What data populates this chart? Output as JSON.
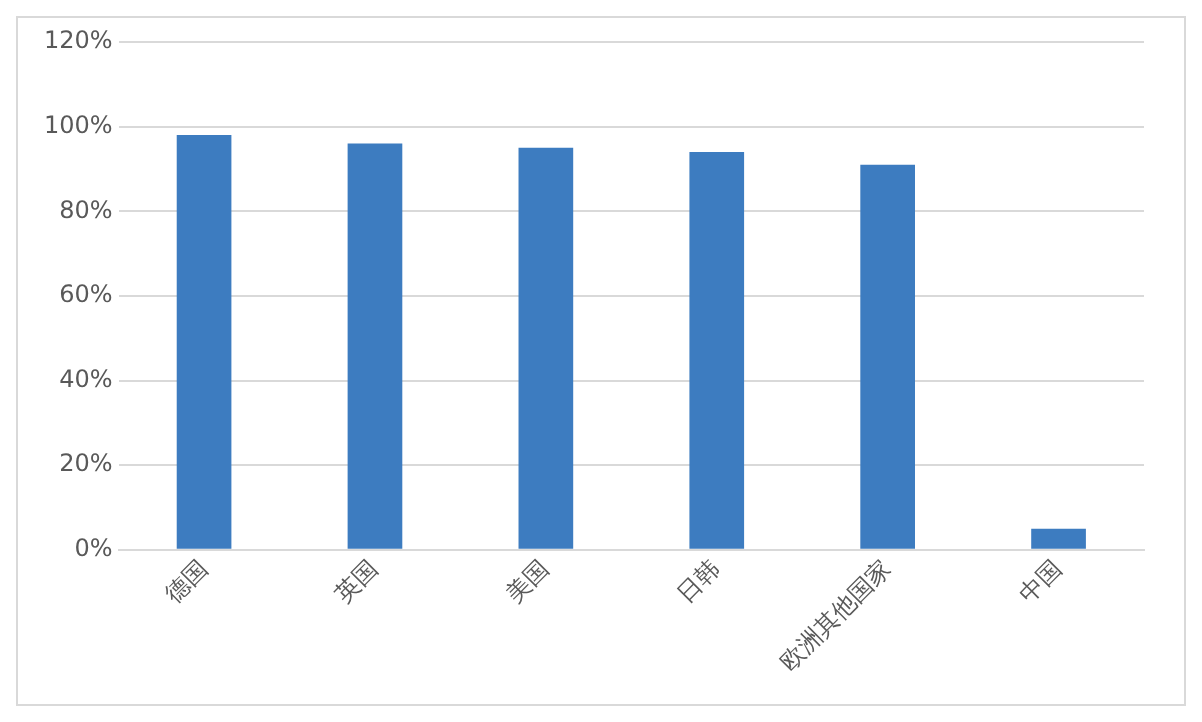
{
  "chart_data": {
    "type": "bar",
    "categories": [
      "德国",
      "英国",
      "美国",
      "日韩",
      "欧洲其他国家",
      "中国"
    ],
    "values": [
      98,
      96,
      95,
      94,
      91,
      5
    ],
    "color": "#3d7cc0",
    "ylim": [
      0,
      120
    ],
    "yticks": [
      {
        "value": 0,
        "label": "0%"
      },
      {
        "value": 20,
        "label": "20%"
      },
      {
        "value": 40,
        "label": "40%"
      },
      {
        "value": 60,
        "label": "60%"
      },
      {
        "value": 80,
        "label": "80%"
      },
      {
        "value": 100,
        "label": "100%"
      },
      {
        "value": 120,
        "label": "120%"
      }
    ],
    "grid": "y"
  }
}
